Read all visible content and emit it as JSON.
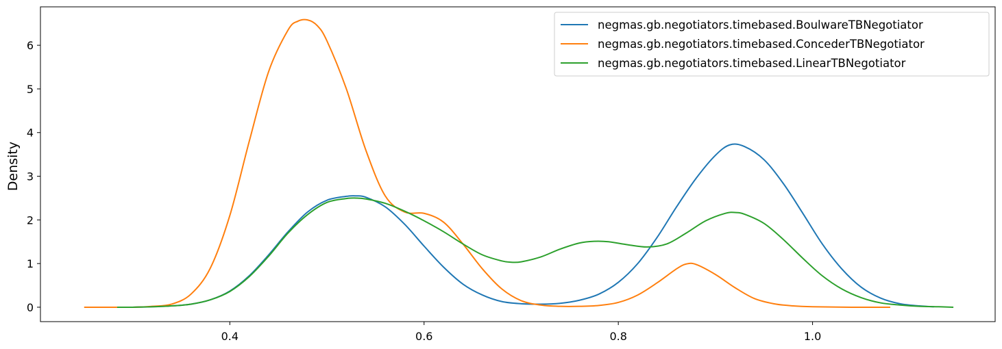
{
  "chart_data": {
    "type": "line",
    "title": "",
    "xlabel": "",
    "ylabel": "Density",
    "xlim": [
      0.205,
      1.188
    ],
    "ylim": [
      -0.33,
      6.88
    ],
    "x_ticks": [
      0.4,
      0.6,
      0.8,
      1.0
    ],
    "x_tick_labels": [
      "0.4",
      "0.6",
      "0.8",
      "1.0"
    ],
    "y_ticks": [
      0,
      1,
      2,
      3,
      4,
      5,
      6
    ],
    "y_tick_labels": [
      "0",
      "1",
      "2",
      "3",
      "4",
      "5",
      "6"
    ],
    "grid": false,
    "legend_position": "upper right",
    "series": [
      {
        "name": "negmas.gb.negotiators.timebased.BoulwareTBNegotiator",
        "color": "#1f77b4",
        "x": [
          0.284,
          0.3,
          0.32,
          0.34,
          0.36,
          0.38,
          0.4,
          0.42,
          0.44,
          0.46,
          0.48,
          0.5,
          0.52,
          0.53,
          0.54,
          0.56,
          0.58,
          0.6,
          0.62,
          0.64,
          0.66,
          0.68,
          0.7,
          0.72,
          0.74,
          0.76,
          0.78,
          0.8,
          0.82,
          0.84,
          0.86,
          0.88,
          0.9,
          0.915,
          0.93,
          0.95,
          0.97,
          0.99,
          1.01,
          1.03,
          1.05,
          1.07,
          1.09,
          1.11,
          1.125
        ],
        "y": [
          0.0,
          0.0,
          0.01,
          0.03,
          0.07,
          0.17,
          0.37,
          0.72,
          1.2,
          1.73,
          2.18,
          2.45,
          2.54,
          2.55,
          2.52,
          2.3,
          1.9,
          1.4,
          0.92,
          0.53,
          0.28,
          0.13,
          0.08,
          0.07,
          0.09,
          0.16,
          0.3,
          0.57,
          1.0,
          1.6,
          2.3,
          2.95,
          3.48,
          3.72,
          3.68,
          3.38,
          2.83,
          2.15,
          1.45,
          0.88,
          0.46,
          0.21,
          0.08,
          0.03,
          0.01
        ]
      },
      {
        "name": "negmas.gb.negotiators.timebased.ConcederTBNegotiator",
        "color": "#ff7f0e",
        "x": [
          0.25,
          0.3,
          0.32,
          0.34,
          0.36,
          0.38,
          0.4,
          0.42,
          0.44,
          0.46,
          0.47,
          0.48,
          0.49,
          0.5,
          0.52,
          0.54,
          0.56,
          0.58,
          0.6,
          0.62,
          0.64,
          0.66,
          0.68,
          0.7,
          0.72,
          0.74,
          0.76,
          0.78,
          0.8,
          0.82,
          0.84,
          0.86,
          0.87,
          0.88,
          0.9,
          0.92,
          0.94,
          0.96,
          0.98,
          1.0,
          1.04,
          1.08
        ],
        "y": [
          0.0,
          0.0,
          0.02,
          0.07,
          0.3,
          0.9,
          2.1,
          3.8,
          5.4,
          6.35,
          6.55,
          6.58,
          6.45,
          6.1,
          5.0,
          3.6,
          2.55,
          2.18,
          2.15,
          1.95,
          1.45,
          0.88,
          0.42,
          0.15,
          0.05,
          0.02,
          0.02,
          0.04,
          0.11,
          0.28,
          0.56,
          0.88,
          0.99,
          0.98,
          0.75,
          0.45,
          0.2,
          0.08,
          0.03,
          0.01,
          0.0,
          0.0
        ]
      },
      {
        "name": "negmas.gb.negotiators.timebased.LinearTBNegotiator",
        "color": "#2ca02c",
        "x": [
          0.284,
          0.3,
          0.32,
          0.34,
          0.36,
          0.38,
          0.4,
          0.42,
          0.44,
          0.46,
          0.48,
          0.5,
          0.52,
          0.53,
          0.54,
          0.56,
          0.58,
          0.6,
          0.62,
          0.64,
          0.66,
          0.68,
          0.69,
          0.7,
          0.72,
          0.74,
          0.76,
          0.775,
          0.79,
          0.81,
          0.83,
          0.85,
          0.87,
          0.89,
          0.91,
          0.92,
          0.93,
          0.95,
          0.97,
          0.99,
          1.01,
          1.03,
          1.05,
          1.07,
          1.09,
          1.11,
          1.13,
          1.145
        ],
        "y": [
          0.0,
          0.0,
          0.01,
          0.03,
          0.07,
          0.17,
          0.36,
          0.7,
          1.17,
          1.7,
          2.12,
          2.4,
          2.49,
          2.5,
          2.48,
          2.38,
          2.2,
          1.98,
          1.73,
          1.45,
          1.2,
          1.06,
          1.03,
          1.04,
          1.15,
          1.33,
          1.47,
          1.51,
          1.5,
          1.43,
          1.38,
          1.45,
          1.7,
          1.98,
          2.15,
          2.17,
          2.13,
          1.92,
          1.55,
          1.12,
          0.72,
          0.42,
          0.22,
          0.1,
          0.05,
          0.02,
          0.01,
          0.0
        ]
      }
    ]
  }
}
